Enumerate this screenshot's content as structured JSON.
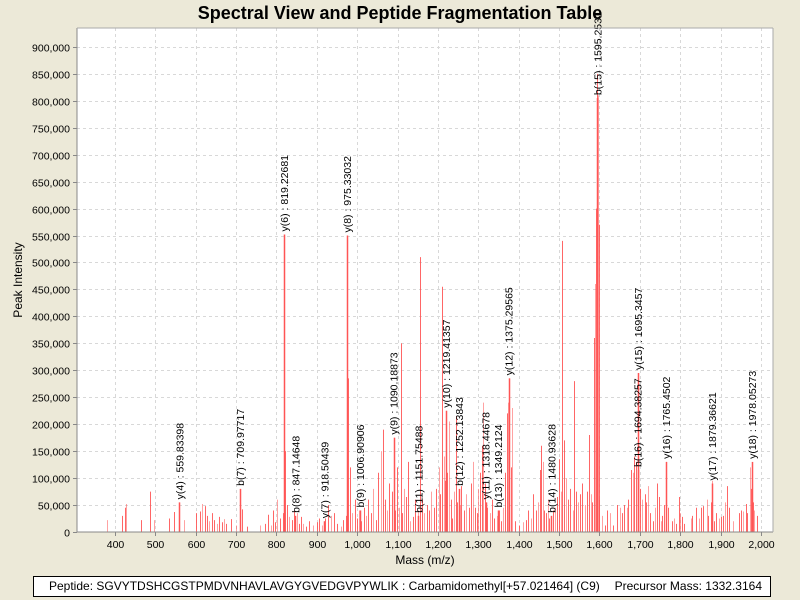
{
  "chart_data": {
    "type": "bar",
    "subtype": "mass-spectrum-stick",
    "title": "Spectral View and Peptide Fragmentation Table",
    "xlabel": "Mass (m/z)",
    "ylabel": "Peak Intensity",
    "xlim": [
      306,
      2030
    ],
    "ylim": [
      0,
      935000
    ],
    "grid": true,
    "x_ticks": [
      400,
      500,
      600,
      700,
      800,
      900,
      1000,
      1100,
      1200,
      1300,
      1400,
      1500,
      1600,
      1700,
      1800,
      1900,
      2000
    ],
    "x_tick_labels": [
      "400",
      "500",
      "600",
      "700",
      "800",
      "900",
      "1,000",
      "1,100",
      "1,200",
      "1,300",
      "1,400",
      "1,500",
      "1,600",
      "1,700",
      "1,800",
      "1,900",
      "2,000"
    ],
    "y_ticks": [
      0,
      50000,
      100000,
      150000,
      200000,
      250000,
      300000,
      350000,
      400000,
      450000,
      500000,
      550000,
      600000,
      650000,
      700000,
      750000,
      800000,
      850000,
      900000
    ],
    "y_tick_labels": [
      "0",
      "50,000",
      "100,000",
      "150,000",
      "200,000",
      "250,000",
      "300,000",
      "350,000",
      "400,000",
      "450,000",
      "500,000",
      "550,000",
      "600,000",
      "650,000",
      "700,000",
      "750,000",
      "800,000",
      "850,000",
      "900,000"
    ],
    "bar_color": "#ff5555",
    "annotations": [
      {
        "label": "y(4) : 559.83398",
        "x": 559.83,
        "y": 55000
      },
      {
        "label": "b(7) : 709.97717",
        "x": 709.98,
        "y": 80000
      },
      {
        "label": "y(6) : 819.22681",
        "x": 819.23,
        "y": 552000
      },
      {
        "label": "b(8) : 847.14648",
        "x": 847.15,
        "y": 30000
      },
      {
        "label": "y(7) : 918.50439",
        "x": 918.5,
        "y": 20000
      },
      {
        "label": "y(8) : 975.33032",
        "x": 975.33,
        "y": 550000
      },
      {
        "label": "b(9) : 1006.90906",
        "x": 1006.91,
        "y": 40000
      },
      {
        "label": "y(9) : 1090.18873",
        "x": 1090.19,
        "y": 175000
      },
      {
        "label": "b(11) : 1151.75488",
        "x": 1151.75,
        "y": 30000
      },
      {
        "label": "y(10) : 1219.41357",
        "x": 1219.41,
        "y": 225000
      },
      {
        "label": "b(12) : 1252.13843",
        "x": 1252.14,
        "y": 80000
      },
      {
        "label": "y(11) : 1318.44678",
        "x": 1318.45,
        "y": 55000
      },
      {
        "label": "b(13) : 1349.2124",
        "x": 1349.21,
        "y": 40000
      },
      {
        "label": "y(12) : 1375.29565",
        "x": 1375.3,
        "y": 285000
      },
      {
        "label": "b(14) : 1480.93628",
        "x": 1480.94,
        "y": 30000
      },
      {
        "label": "b(15) : 1595.2531",
        "x": 1595.25,
        "y": 805000
      },
      {
        "label": "b(16) : 1694.38257",
        "x": 1694.38,
        "y": 115000
      },
      {
        "label": "y(15) : 1695.3457",
        "x": 1695.35,
        "y": 295000
      },
      {
        "label": "y(16) : 1765.4502",
        "x": 1765.45,
        "y": 130000
      },
      {
        "label": "y(17) : 1879.36621",
        "x": 1879.37,
        "y": 90000
      },
      {
        "label": "y(18) : 1978.05273",
        "x": 1978.05,
        "y": 130000
      }
    ],
    "peaks": [
      [
        380,
        22000
      ],
      [
        418,
        30000
      ],
      [
        424,
        45000
      ],
      [
        428,
        52000
      ],
      [
        465,
        22000
      ],
      [
        487,
        75000
      ],
      [
        497,
        22000
      ],
      [
        533,
        25000
      ],
      [
        546,
        37000
      ],
      [
        570,
        22000
      ],
      [
        602,
        35000
      ],
      [
        610,
        38000
      ],
      [
        615,
        52000
      ],
      [
        622,
        48000
      ],
      [
        628,
        30000
      ],
      [
        634,
        20000
      ],
      [
        640,
        35000
      ],
      [
        646,
        22000
      ],
      [
        652,
        15000
      ],
      [
        658,
        28000
      ],
      [
        664,
        18000
      ],
      [
        670,
        24000
      ],
      [
        676,
        15000
      ],
      [
        688,
        24000
      ],
      [
        700,
        12000
      ],
      [
        714,
        42000
      ],
      [
        728,
        10000
      ],
      [
        760,
        12000
      ],
      [
        772,
        15000
      ],
      [
        780,
        32000
      ],
      [
        786,
        12000
      ],
      [
        792,
        40000
      ],
      [
        797,
        18000
      ],
      [
        802,
        60000
      ],
      [
        808,
        25000
      ],
      [
        816,
        35000
      ],
      [
        819.2,
        552000
      ],
      [
        822,
        150000
      ],
      [
        826,
        50000
      ],
      [
        832,
        28000
      ],
      [
        838,
        22000
      ],
      [
        843,
        40000
      ],
      [
        850,
        35000
      ],
      [
        855,
        15000
      ],
      [
        860,
        28000
      ],
      [
        866,
        15000
      ],
      [
        872,
        10000
      ],
      [
        880,
        20000
      ],
      [
        890,
        12000
      ],
      [
        900,
        18000
      ],
      [
        906,
        25000
      ],
      [
        912,
        12000
      ],
      [
        920,
        25000
      ],
      [
        928,
        50000
      ],
      [
        935,
        30000
      ],
      [
        942,
        35000
      ],
      [
        950,
        15000
      ],
      [
        960,
        10000
      ],
      [
        966,
        22000
      ],
      [
        972,
        30000
      ],
      [
        975.3,
        550000
      ],
      [
        978,
        285000
      ],
      [
        982,
        120000
      ],
      [
        988,
        35000
      ],
      [
        994,
        60000
      ],
      [
        1000,
        25000
      ],
      [
        1004,
        40000
      ],
      [
        1010,
        20000
      ],
      [
        1016,
        45000
      ],
      [
        1022,
        30000
      ],
      [
        1028,
        60000
      ],
      [
        1034,
        35000
      ],
      [
        1040,
        80000
      ],
      [
        1046,
        22000
      ],
      [
        1052,
        110000
      ],
      [
        1058,
        150000
      ],
      [
        1064,
        190000
      ],
      [
        1070,
        60000
      ],
      [
        1074,
        40000
      ],
      [
        1080,
        90000
      ],
      [
        1086,
        75000
      ],
      [
        1090.2,
        165000
      ],
      [
        1094,
        40000
      ],
      [
        1098,
        120000
      ],
      [
        1104,
        45000
      ],
      [
        1108,
        350000
      ],
      [
        1112,
        35000
      ],
      [
        1116,
        80000
      ],
      [
        1120,
        65000
      ],
      [
        1126,
        130000
      ],
      [
        1132,
        20000
      ],
      [
        1138,
        28000
      ],
      [
        1144,
        60000
      ],
      [
        1150,
        40000
      ],
      [
        1156,
        510000
      ],
      [
        1160,
        60000
      ],
      [
        1166,
        35000
      ],
      [
        1172,
        50000
      ],
      [
        1178,
        40000
      ],
      [
        1184,
        75000
      ],
      [
        1190,
        45000
      ],
      [
        1196,
        80000
      ],
      [
        1202,
        120000
      ],
      [
        1206,
        70000
      ],
      [
        1210,
        455000
      ],
      [
        1214,
        140000
      ],
      [
        1218,
        95000
      ],
      [
        1222,
        110000
      ],
      [
        1228,
        205000
      ],
      [
        1232,
        60000
      ],
      [
        1236,
        25000
      ],
      [
        1240,
        75000
      ],
      [
        1244,
        215000
      ],
      [
        1248,
        55000
      ],
      [
        1254,
        50000
      ],
      [
        1258,
        85000
      ],
      [
        1264,
        40000
      ],
      [
        1270,
        70000
      ],
      [
        1276,
        45000
      ],
      [
        1282,
        90000
      ],
      [
        1288,
        130000
      ],
      [
        1292,
        45000
      ],
      [
        1296,
        35000
      ],
      [
        1300,
        80000
      ],
      [
        1304,
        110000
      ],
      [
        1308,
        160000
      ],
      [
        1312,
        240000
      ],
      [
        1316,
        90000
      ],
      [
        1322,
        45000
      ],
      [
        1328,
        35000
      ],
      [
        1334,
        60000
      ],
      [
        1340,
        25000
      ],
      [
        1346,
        30000
      ],
      [
        1352,
        40000
      ],
      [
        1356,
        20000
      ],
      [
        1362,
        45000
      ],
      [
        1366,
        110000
      ],
      [
        1370,
        220000
      ],
      [
        1374,
        240000
      ],
      [
        1376,
        285000
      ],
      [
        1380,
        120000
      ],
      [
        1384,
        230000
      ],
      [
        1390,
        20000
      ],
      [
        1400,
        12000
      ],
      [
        1410,
        18000
      ],
      [
        1418,
        22000
      ],
      [
        1424,
        40000
      ],
      [
        1430,
        25000
      ],
      [
        1436,
        70000
      ],
      [
        1442,
        40000
      ],
      [
        1448,
        55000
      ],
      [
        1452,
        115000
      ],
      [
        1456,
        160000
      ],
      [
        1460,
        130000
      ],
      [
        1464,
        40000
      ],
      [
        1468,
        35000
      ],
      [
        1472,
        60000
      ],
      [
        1476,
        25000
      ],
      [
        1484,
        40000
      ],
      [
        1490,
        45000
      ],
      [
        1496,
        65000
      ],
      [
        1500,
        135000
      ],
      [
        1504,
        75000
      ],
      [
        1508,
        540000
      ],
      [
        1512,
        170000
      ],
      [
        1518,
        100000
      ],
      [
        1522,
        60000
      ],
      [
        1528,
        80000
      ],
      [
        1534,
        40000
      ],
      [
        1538,
        280000
      ],
      [
        1542,
        75000
      ],
      [
        1546,
        55000
      ],
      [
        1552,
        70000
      ],
      [
        1558,
        90000
      ],
      [
        1564,
        50000
      ],
      [
        1570,
        75000
      ],
      [
        1574,
        180000
      ],
      [
        1578,
        70000
      ],
      [
        1582,
        55000
      ],
      [
        1586,
        360000
      ],
      [
        1590,
        460000
      ],
      [
        1592,
        600000
      ],
      [
        1594,
        850000
      ],
      [
        1596,
        810000
      ],
      [
        1598,
        570000
      ],
      [
        1600,
        60000
      ],
      [
        1606,
        30000
      ],
      [
        1614,
        12000
      ],
      [
        1620,
        40000
      ],
      [
        1626,
        35000
      ],
      [
        1634,
        12000
      ],
      [
        1644,
        50000
      ],
      [
        1650,
        45000
      ],
      [
        1656,
        35000
      ],
      [
        1662,
        50000
      ],
      [
        1668,
        45000
      ],
      [
        1672,
        60000
      ],
      [
        1678,
        115000
      ],
      [
        1682,
        110000
      ],
      [
        1686,
        140000
      ],
      [
        1690,
        130000
      ],
      [
        1694.4,
        110000
      ],
      [
        1695.3,
        295000
      ],
      [
        1700,
        80000
      ],
      [
        1706,
        60000
      ],
      [
        1712,
        70000
      ],
      [
        1716,
        55000
      ],
      [
        1720,
        85000
      ],
      [
        1726,
        35000
      ],
      [
        1732,
        20000
      ],
      [
        1738,
        45000
      ],
      [
        1742,
        90000
      ],
      [
        1748,
        65000
      ],
      [
        1752,
        20000
      ],
      [
        1756,
        30000
      ],
      [
        1760,
        50000
      ],
      [
        1765.5,
        130000
      ],
      [
        1770,
        45000
      ],
      [
        1780,
        20000
      ],
      [
        1786,
        25000
      ],
      [
        1790,
        15000
      ],
      [
        1796,
        65000
      ],
      [
        1800,
        35000
      ],
      [
        1804,
        28000
      ],
      [
        1810,
        15000
      ],
      [
        1826,
        25000
      ],
      [
        1830,
        30000
      ],
      [
        1840,
        45000
      ],
      [
        1846,
        25000
      ],
      [
        1852,
        45000
      ],
      [
        1856,
        48000
      ],
      [
        1866,
        60000
      ],
      [
        1870,
        30000
      ],
      [
        1876,
        55000
      ],
      [
        1879.4,
        95000
      ],
      [
        1884,
        20000
      ],
      [
        1890,
        35000
      ],
      [
        1896,
        25000
      ],
      [
        1902,
        28000
      ],
      [
        1906,
        30000
      ],
      [
        1912,
        55000
      ],
      [
        1916,
        85000
      ],
      [
        1920,
        45000
      ],
      [
        1930,
        20000
      ],
      [
        1946,
        35000
      ],
      [
        1950,
        40000
      ],
      [
        1956,
        38000
      ],
      [
        1962,
        52000
      ],
      [
        1966,
        35000
      ],
      [
        1972,
        120000
      ],
      [
        1976,
        80000
      ],
      [
        1980,
        55000
      ],
      [
        1984,
        40000
      ],
      [
        1990,
        30000
      ]
    ]
  },
  "footer": {
    "peptide_text": "Peptide: SGVYTDSHCGSTPMDVNHAVLAVGYGVEDGVPYWLIK : Carbamidomethyl[+57.021464] (C9)",
    "precursor_text": "Precursor Mass: 1332.3164"
  }
}
